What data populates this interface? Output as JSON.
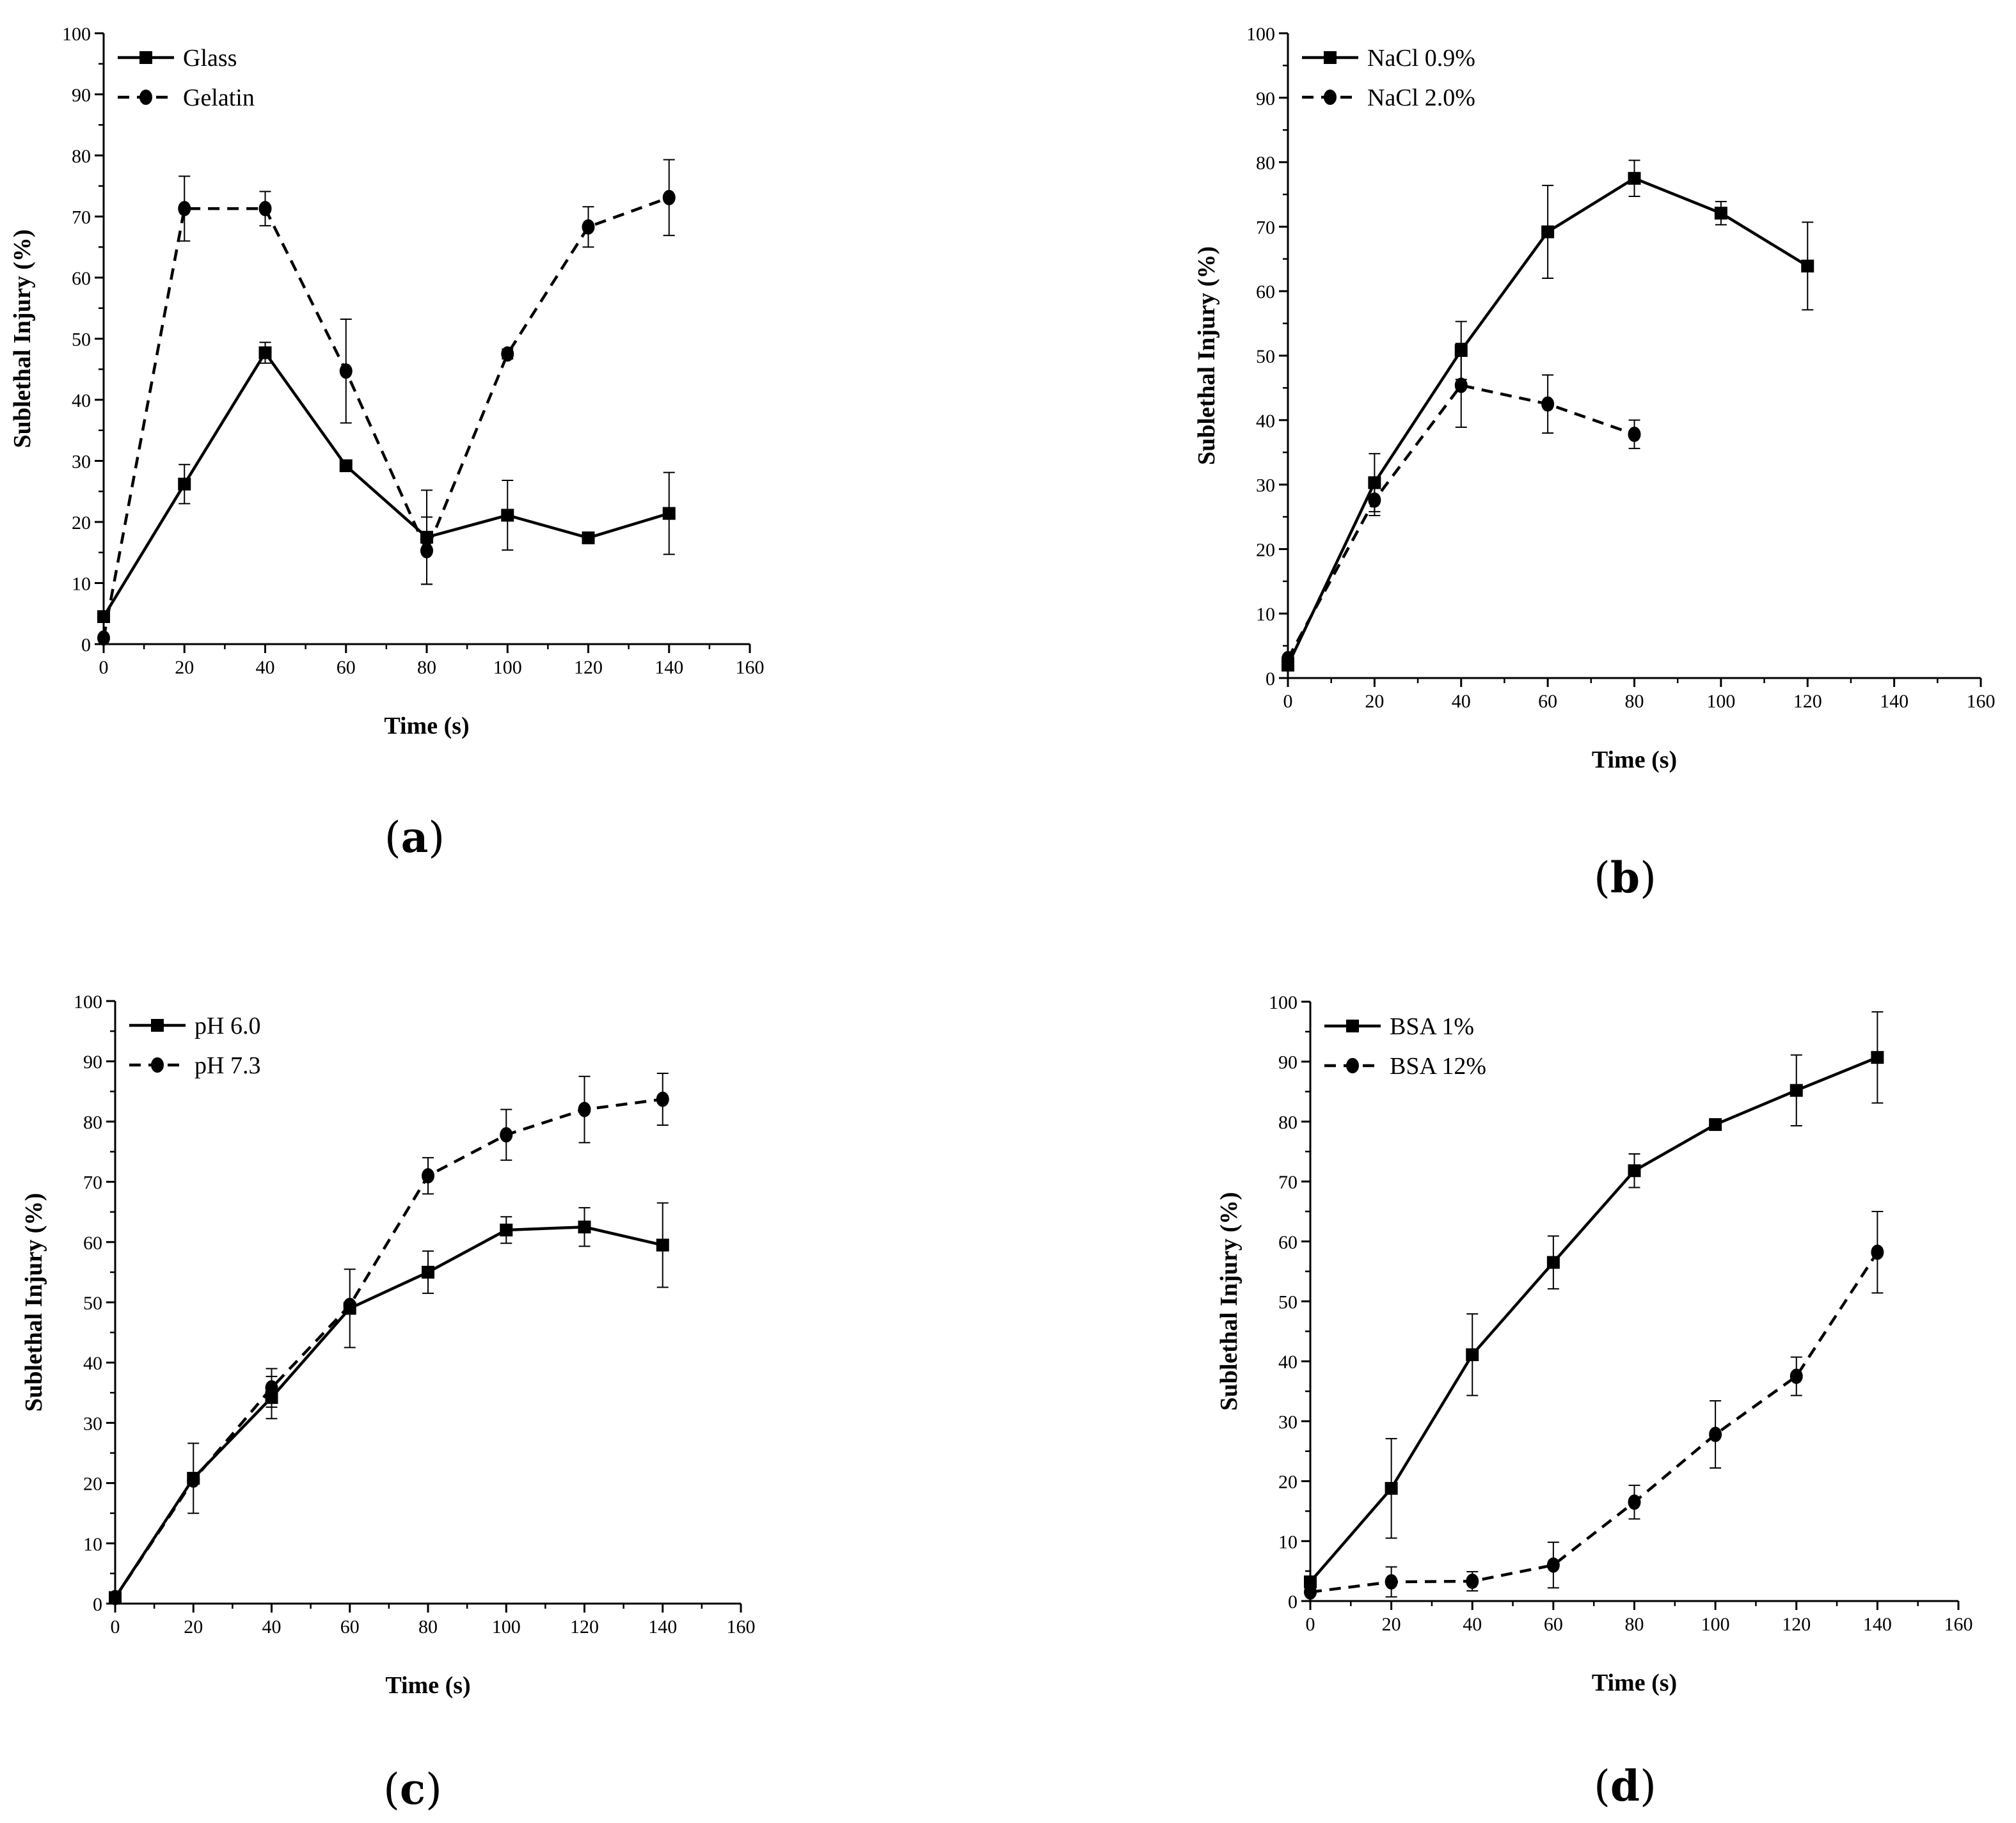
{
  "chart_data": [
    {
      "type": "line",
      "panel_label": "a",
      "xlabel": "Time (s)",
      "ylabel": "Sublethal Injury (%)",
      "xlim": [
        0,
        160
      ],
      "ylim": [
        0,
        100
      ],
      "xticks": [
        0,
        20,
        40,
        60,
        80,
        100,
        120,
        140,
        160
      ],
      "yticks": [
        0,
        10,
        20,
        30,
        40,
        50,
        60,
        70,
        80,
        90,
        100
      ],
      "legend_position": "top-left",
      "series": [
        {
          "name": "Glass",
          "marker": "square",
          "dash": "solid",
          "x": [
            0,
            20,
            40,
            60,
            80,
            100,
            120,
            140
          ],
          "y": [
            4.5,
            26.2,
            47.7,
            29.2,
            17.5,
            21.1,
            17.4,
            21.4
          ],
          "err": [
            0,
            3.2,
            1.7,
            0,
            7.7,
            5.7,
            0,
            6.7
          ]
        },
        {
          "name": "Gelatin",
          "marker": "circle",
          "dash": "dashed",
          "x": [
            0,
            20,
            40,
            60,
            80,
            100,
            120,
            140
          ],
          "y": [
            1,
            71.3,
            71.3,
            44.7,
            15.3,
            47.5,
            68.3,
            73.1
          ],
          "err": [
            0,
            5.3,
            2.8,
            8.5,
            5.5,
            0.8,
            3.3,
            6.2
          ]
        }
      ]
    },
    {
      "type": "line",
      "panel_label": "b",
      "xlabel": "Time (s)",
      "ylabel": "Sublethal Injury (%)",
      "xlim": [
        0,
        160
      ],
      "ylim": [
        0,
        100
      ],
      "xticks": [
        0,
        20,
        40,
        60,
        80,
        100,
        120,
        140,
        160
      ],
      "yticks": [
        0,
        10,
        20,
        30,
        40,
        50,
        60,
        70,
        80,
        90,
        100
      ],
      "legend_position": "top-left",
      "series": [
        {
          "name": "NaCl 0.9%",
          "marker": "square",
          "dash": "solid",
          "x": [
            0,
            20,
            40,
            60,
            80,
            100,
            120
          ],
          "y": [
            2,
            30.3,
            50.8,
            69.2,
            77.5,
            72.1,
            63.9
          ],
          "err": [
            0,
            4.5,
            4.5,
            7.2,
            2.8,
            1.8,
            6.8
          ]
        },
        {
          "name": "NaCl 2.0%",
          "marker": "circle",
          "dash": "dashed",
          "x": [
            0,
            20,
            40,
            60,
            80
          ],
          "y": [
            3,
            27.6,
            45.4,
            42.5,
            37.8
          ],
          "err": [
            0,
            2.4,
            6.5,
            4.5,
            2.2
          ]
        }
      ]
    },
    {
      "type": "line",
      "panel_label": "c",
      "xlabel": "Time (s)",
      "ylabel": "Sublethal Injury (%)",
      "xlim": [
        0,
        160
      ],
      "ylim": [
        0,
        100
      ],
      "xticks": [
        0,
        20,
        40,
        60,
        80,
        100,
        120,
        140,
        160
      ],
      "yticks": [
        0,
        10,
        20,
        30,
        40,
        50,
        60,
        70,
        80,
        90,
        100
      ],
      "legend_position": "top-left",
      "series": [
        {
          "name": "pH 6.0",
          "marker": "square",
          "dash": "solid",
          "x": [
            0,
            20,
            40,
            60,
            80,
            100,
            120,
            140
          ],
          "y": [
            1,
            20.8,
            34.2,
            49,
            55,
            62,
            62.5,
            59.5
          ],
          "err": [
            0,
            5.8,
            3.5,
            6.5,
            3.5,
            2.2,
            3.2,
            7
          ]
        },
        {
          "name": "pH 7.3",
          "marker": "circle",
          "dash": "dashed",
          "x": [
            0,
            20,
            40,
            60,
            80,
            100,
            120,
            140
          ],
          "y": [
            1,
            20.5,
            35.8,
            49.5,
            71,
            77.8,
            82,
            83.7
          ],
          "err": [
            0,
            0,
            3.2,
            0,
            3,
            4.2,
            5.5,
            4.3
          ]
        }
      ]
    },
    {
      "type": "line",
      "panel_label": "d",
      "xlabel": "Time (s)",
      "ylabel": "Sublethal Injury (%)",
      "xlim": [
        0,
        160
      ],
      "ylim": [
        0,
        100
      ],
      "xticks": [
        0,
        20,
        40,
        60,
        80,
        100,
        120,
        140,
        160
      ],
      "yticks": [
        0,
        10,
        20,
        30,
        40,
        50,
        60,
        70,
        80,
        90,
        100
      ],
      "legend_position": "top-left",
      "series": [
        {
          "name": "BSA 1%",
          "marker": "square",
          "dash": "solid",
          "x": [
            0,
            20,
            40,
            60,
            80,
            100,
            120,
            140
          ],
          "y": [
            3.2,
            18.8,
            41.1,
            56.5,
            71.8,
            79.5,
            85.2,
            90.7
          ],
          "err": [
            0,
            8.3,
            6.8,
            4.4,
            2.8,
            0.4,
            5.9,
            7.6
          ]
        },
        {
          "name": "BSA 12%",
          "marker": "circle",
          "dash": "dashed",
          "x": [
            0,
            20,
            40,
            60,
            80,
            100,
            120,
            140
          ],
          "y": [
            1.5,
            3.2,
            3.3,
            6,
            16.5,
            27.8,
            37.5,
            58.2
          ],
          "err": [
            0,
            2.5,
            1.6,
            3.8,
            2.8,
            5.6,
            3.2,
            6.8
          ]
        }
      ]
    }
  ]
}
